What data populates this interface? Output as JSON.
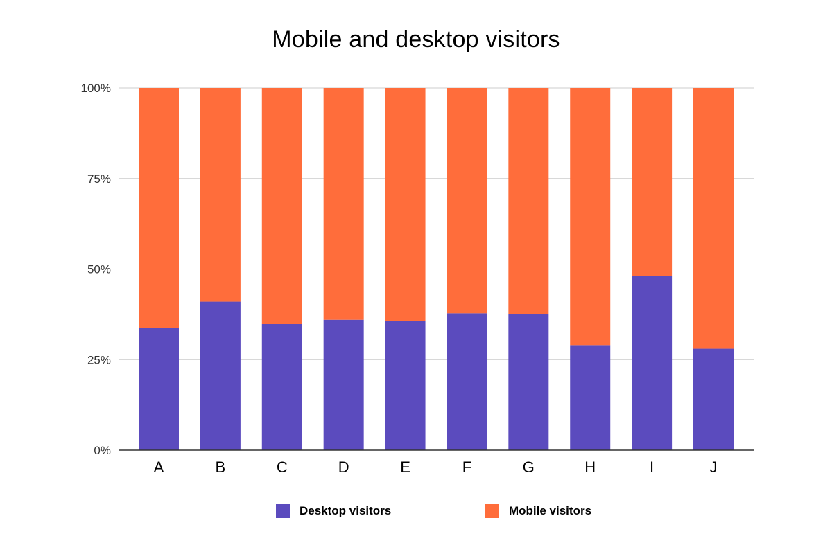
{
  "chart_data": {
    "type": "bar",
    "stacked": "percent",
    "title": "Mobile and desktop visitors",
    "xlabel": "",
    "ylabel": "",
    "ylim": [
      0,
      100
    ],
    "y_ticks": [
      "0%",
      "25%",
      "50%",
      "75%",
      "100%"
    ],
    "y_tick_values": [
      0,
      25,
      50,
      75,
      100
    ],
    "grid": true,
    "legend_position": "bottom",
    "categories": [
      "A",
      "B",
      "C",
      "D",
      "E",
      "F",
      "G",
      "H",
      "I",
      "J"
    ],
    "series": [
      {
        "name": "Desktop visitors",
        "color": "#5b4bbe",
        "values": [
          33.8,
          41,
          34.8,
          36,
          35.6,
          37.8,
          37.5,
          29,
          48,
          28
        ]
      },
      {
        "name": "Mobile visitors",
        "color": "#ff6d3b",
        "values": [
          66.2,
          59,
          65.2,
          64,
          64.4,
          62.2,
          62.5,
          71,
          52,
          72
        ]
      }
    ]
  }
}
